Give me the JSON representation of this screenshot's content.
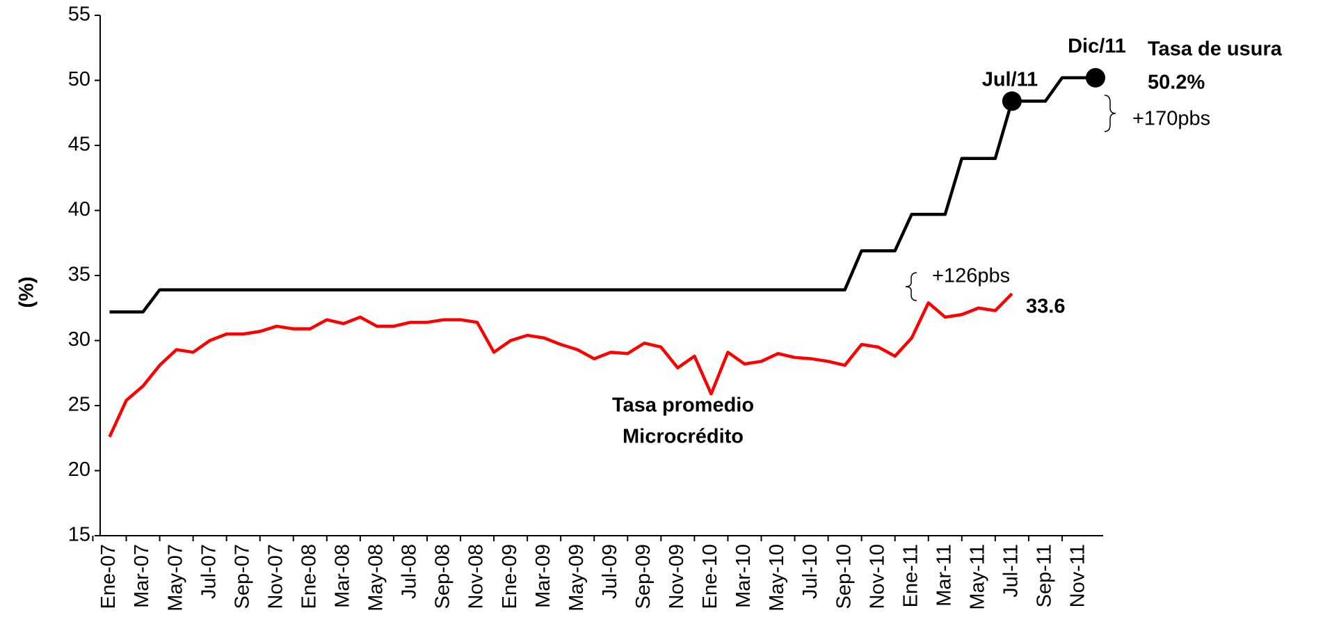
{
  "chart_data": {
    "type": "line",
    "y_label": "(%)",
    "categories": [
      "Ene-07",
      null,
      "Mar-07",
      null,
      "May-07",
      null,
      "Jul-07",
      null,
      "Sep-07",
      null,
      "Nov-07",
      null,
      "Ene-08",
      null,
      "Mar-08",
      null,
      "May-08",
      null,
      "Jul-08",
      null,
      "Sep-08",
      null,
      "Nov-08",
      null,
      "Ene-09",
      null,
      "Mar-09",
      null,
      "May-09",
      null,
      "Jul-09",
      null,
      "Sep-09",
      null,
      "Nov-09",
      null,
      "Ene-10",
      null,
      "Mar-10",
      null,
      "May-10",
      null,
      "Jul-10",
      null,
      "Sep-10",
      null,
      "Nov-10",
      null,
      "Ene-11",
      null,
      "Mar-11",
      null,
      "May-11",
      null,
      "Jul-11",
      null,
      "Sep-11",
      null,
      "Nov-11",
      null
    ],
    "series": [
      {
        "name": "Tasa de usura",
        "color": "#000000",
        "values": [
          32.2,
          32.2,
          32.2,
          33.9,
          33.9,
          33.9,
          33.9,
          33.9,
          33.9,
          33.9,
          33.9,
          33.9,
          33.9,
          33.9,
          33.9,
          33.9,
          33.9,
          33.9,
          33.9,
          33.9,
          33.9,
          33.9,
          33.9,
          33.9,
          33.9,
          33.9,
          33.9,
          33.9,
          33.9,
          33.9,
          33.9,
          33.9,
          33.9,
          33.9,
          33.9,
          33.9,
          33.9,
          33.9,
          33.9,
          33.9,
          33.9,
          33.9,
          33.9,
          33.9,
          33.9,
          36.9,
          36.9,
          36.9,
          39.7,
          39.7,
          39.7,
          44.0,
          44.0,
          44.0,
          48.4,
          48.4,
          48.4,
          50.2,
          50.2,
          50.2
        ]
      },
      {
        "name": "Tasa promedio Microcrédito",
        "color": "#ff0000",
        "values": [
          22.6,
          25.4,
          26.5,
          28.1,
          29.3,
          29.1,
          30.0,
          30.5,
          30.5,
          30.7,
          31.1,
          30.9,
          30.9,
          31.6,
          31.3,
          31.8,
          31.1,
          31.1,
          31.4,
          31.4,
          31.6,
          31.6,
          31.4,
          29.1,
          30.0,
          30.4,
          30.2,
          29.7,
          29.3,
          28.6,
          29.1,
          29.0,
          29.8,
          29.5,
          27.9,
          28.8,
          25.9,
          29.1,
          28.2,
          28.4,
          29.0,
          28.7,
          28.6,
          28.4,
          28.1,
          29.7,
          29.5,
          28.8,
          30.2,
          32.9,
          31.8,
          32.0,
          32.5,
          32.3,
          33.6,
          null,
          null,
          null,
          null,
          null
        ]
      }
    ],
    "annotations": [
      "Dic/11",
      "Jul/11",
      "Tasa de usura",
      "50.2%",
      "+170pbs",
      "+126pbs",
      "33.6",
      "Tasa promedio",
      "Microcrédito"
    ],
    "ylim": [
      15,
      55
    ],
    "yticks": [
      15,
      20,
      25,
      30,
      35,
      40,
      45,
      50,
      55
    ],
    "grid": false
  }
}
